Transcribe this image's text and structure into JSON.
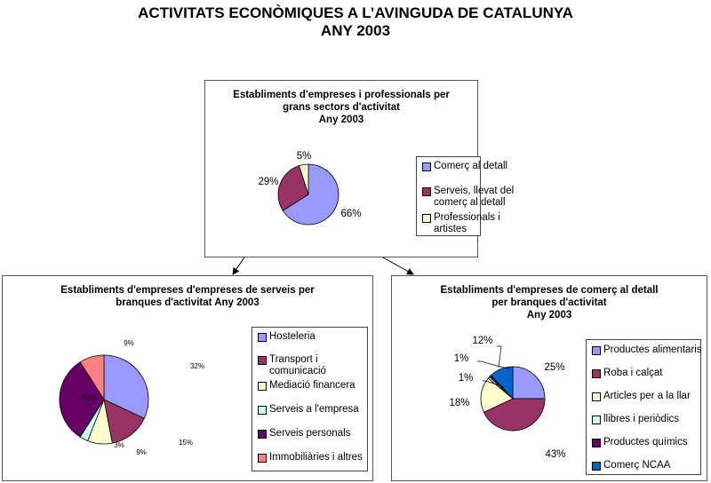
{
  "page": {
    "title_line1": "ACTIVITATS ECONÒMIQUES A L’AVINGUDA DE CATALUNYA",
    "title_line2": "ANY 2003"
  },
  "chart_data": [
    {
      "type": "pie",
      "title": [
        "Establiments d'empreses i professionals per",
        "grans sectors d'activitat",
        "Any 2003"
      ],
      "categories": [
        "Comerç al detall",
        "Serveis, llevat del comerç al detall",
        "Professionals i artistes"
      ],
      "legend_lines": [
        [
          "Comerç al detall"
        ],
        [
          "Serveis, llevat del",
          "comerç al detall"
        ],
        [
          "Professionals i",
          "artistes"
        ]
      ],
      "values": [
        66,
        29,
        5
      ],
      "labels": [
        "66%",
        "29%",
        "5%"
      ],
      "colors": [
        "#9999ff",
        "#993366",
        "#ffffcc"
      ],
      "legend_position": "right"
    },
    {
      "type": "pie",
      "title": [
        "Establiments d'empreses d'empreses de serveis per",
        "branques d'activitat Any 2003"
      ],
      "categories": [
        "Hosteleria",
        "Transport i comunicació",
        "Mediació financera",
        "Serveis a l'empresa",
        "Serveis personals",
        "Immobiliàries i altres"
      ],
      "legend_lines": [
        [
          "Hosteleria"
        ],
        [
          "Transport i",
          "comunicació"
        ],
        [
          "Mediació financera"
        ],
        [
          "Serveis a l'empresa"
        ],
        [
          "Serveis personals"
        ],
        [
          "Immobiliàries i altres"
        ]
      ],
      "values": [
        32,
        15,
        9,
        3,
        32,
        9
      ],
      "labels": [
        "32%",
        "15%",
        "9%",
        "3%",
        "32%",
        "9%"
      ],
      "colors": [
        "#9999ff",
        "#993366",
        "#ffffcc",
        "#ccffff",
        "#660066",
        "#ff8080"
      ],
      "legend_position": "right"
    },
    {
      "type": "pie",
      "title": [
        "Establiments d'empreses de comerç al detall",
        "per branques d'activitat",
        "Any 2003"
      ],
      "categories": [
        "Productes alimentaris",
        "Roba i calçat",
        "Articles per a la llar",
        "llibres i periòdics",
        "Productes químics",
        "Comerç NCAA"
      ],
      "legend_lines": [
        [
          "Productes alimentaris"
        ],
        [
          "Roba i calçat"
        ],
        [
          "Articles per a la llar"
        ],
        [
          "llibres i periòdics"
        ],
        [
          "Productes químics"
        ],
        [
          "Comerç NCAA"
        ]
      ],
      "values": [
        25,
        43,
        18,
        1,
        1,
        12
      ],
      "labels": [
        "25%",
        "43%",
        "18%",
        "1%",
        "1%",
        "12%"
      ],
      "colors": [
        "#9999ff",
        "#993366",
        "#ffffcc",
        "#ccffff",
        "#660066",
        "#0066cc"
      ],
      "legend_position": "right"
    }
  ]
}
